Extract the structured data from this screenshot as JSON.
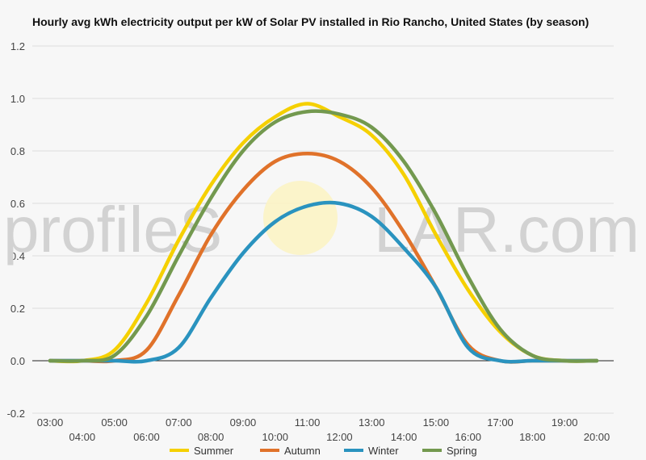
{
  "chart_data": {
    "type": "line",
    "title": "Hourly avg kWh electricity output per kW of Solar PV installed in Rio Rancho, United States (by season)",
    "xlabel": "",
    "ylabel": "",
    "x": [
      "03:00",
      "04:00",
      "05:00",
      "06:00",
      "07:00",
      "08:00",
      "09:00",
      "10:00",
      "11:00",
      "12:00",
      "13:00",
      "14:00",
      "15:00",
      "16:00",
      "17:00",
      "18:00",
      "19:00",
      "20:00"
    ],
    "ylim": [
      -0.2,
      1.2
    ],
    "yticks": [
      -0.2,
      0.0,
      0.2,
      0.4,
      0.6,
      0.8,
      1.0,
      1.2
    ],
    "ytick_labels": [
      "-0.2",
      "0.0",
      "0.2",
      "0.4",
      "0.6",
      "0.8",
      "1.0",
      "1.2"
    ],
    "grid": true,
    "legend_position": "bottom",
    "series": [
      {
        "name": "Summer",
        "color": "#f5d000",
        "values": [
          0.0,
          0.0,
          0.04,
          0.22,
          0.46,
          0.67,
          0.83,
          0.93,
          0.98,
          0.93,
          0.86,
          0.71,
          0.48,
          0.27,
          0.11,
          0.02,
          0.0,
          0.0
        ]
      },
      {
        "name": "Autumn",
        "color": "#e0722a",
        "values": [
          0.0,
          0.0,
          0.0,
          0.04,
          0.25,
          0.48,
          0.65,
          0.76,
          0.79,
          0.76,
          0.66,
          0.49,
          0.28,
          0.06,
          0.0,
          0.0,
          0.0,
          0.0
        ]
      },
      {
        "name": "Winter",
        "color": "#2a93bf",
        "values": [
          0.0,
          0.0,
          0.0,
          0.0,
          0.05,
          0.24,
          0.41,
          0.53,
          0.59,
          0.6,
          0.55,
          0.43,
          0.28,
          0.05,
          0.0,
          0.0,
          0.0,
          0.0
        ]
      },
      {
        "name": "Spring",
        "color": "#73994f",
        "values": [
          0.0,
          0.0,
          0.02,
          0.17,
          0.4,
          0.62,
          0.8,
          0.91,
          0.95,
          0.94,
          0.89,
          0.76,
          0.56,
          0.32,
          0.12,
          0.02,
          0.0,
          0.0
        ]
      }
    ]
  },
  "watermark": {
    "left": "profileS",
    "right": "LAR.com"
  }
}
